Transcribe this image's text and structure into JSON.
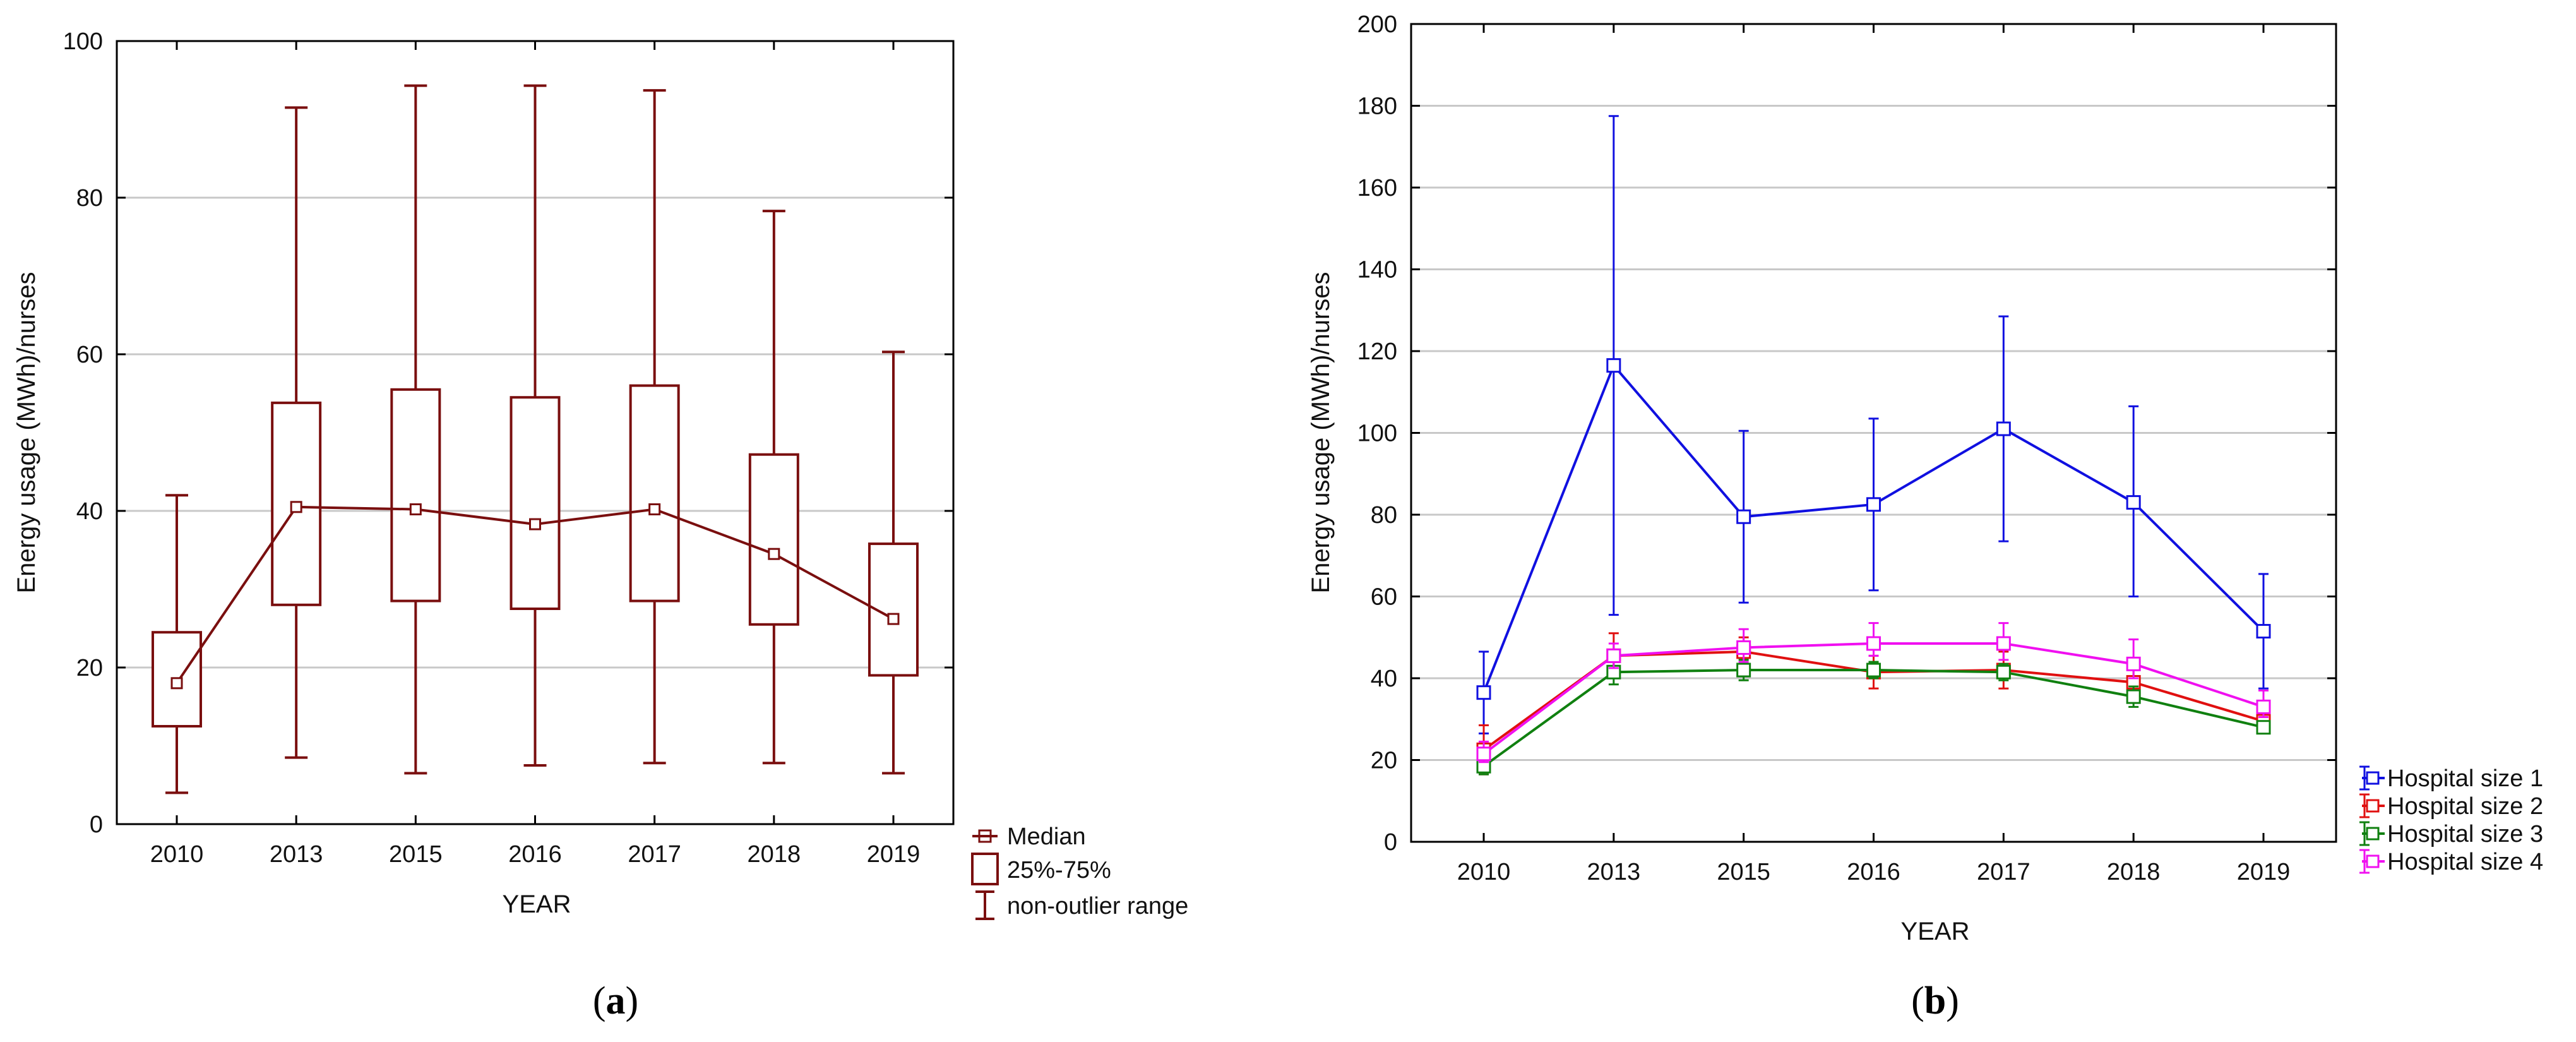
{
  "chart_data": [
    {
      "id": "a",
      "type": "box",
      "caption_letter": "a",
      "xlabel": "YEAR",
      "ylabel": "Energy usage (MWh)/nurses",
      "categories": [
        "2010",
        "2013",
        "2015",
        "2016",
        "2017",
        "2018",
        "2019"
      ],
      "ylim": [
        0,
        100
      ],
      "yticks": [
        0,
        20,
        40,
        60,
        80,
        100
      ],
      "grid": true,
      "color": "#7a0f0f",
      "boxes": [
        {
          "min": 4,
          "q1": 12.5,
          "median": 18,
          "q3": 24.5,
          "max": 42
        },
        {
          "min": 8.5,
          "q1": 28,
          "median": 40.5,
          "q3": 53.8,
          "max": 91.5
        },
        {
          "min": 6.5,
          "q1": 28.5,
          "median": 40.2,
          "q3": 55.5,
          "max": 94.3
        },
        {
          "min": 7.5,
          "q1": 27.5,
          "median": 38.3,
          "q3": 54.5,
          "max": 94.3
        },
        {
          "min": 7.8,
          "q1": 28.5,
          "median": 40.2,
          "q3": 56,
          "max": 93.7
        },
        {
          "min": 7.8,
          "q1": 25.5,
          "median": 34.5,
          "q3": 47.2,
          "max": 78.3
        },
        {
          "min": 6.5,
          "q1": 19,
          "median": 26.2,
          "q3": 35.8,
          "max": 60.3
        }
      ],
      "legend": {
        "median": "Median",
        "box": "25%-75%",
        "whisker": "non-outlier range"
      }
    },
    {
      "id": "b",
      "type": "line",
      "caption_letter": "b",
      "xlabel": "YEAR",
      "ylabel": "Energy usage (MWh)/nurses",
      "categories": [
        "2010",
        "2013",
        "2015",
        "2016",
        "2017",
        "2018",
        "2019"
      ],
      "ylim": [
        0,
        200
      ],
      "yticks": [
        0,
        20,
        40,
        60,
        80,
        100,
        120,
        140,
        160,
        180,
        200
      ],
      "grid": true,
      "series": [
        {
          "name": "Hospital size 1",
          "color": "#1010e0",
          "values": [
            36.5,
            116.5,
            79.5,
            82.5,
            101,
            83,
            51.5
          ],
          "lower": [
            26.5,
            55.5,
            58.5,
            61.5,
            73.5,
            60,
            37.5
          ],
          "upper": [
            46.5,
            177.5,
            100.5,
            103.5,
            128.5,
            106.5,
            65.5
          ]
        },
        {
          "name": "Hospital size 2",
          "color": "#e01010",
          "values": [
            22.5,
            45.5,
            46.5,
            41.5,
            42,
            39,
            29.5
          ],
          "lower": [
            16.5,
            40,
            43,
            37.5,
            37.5,
            36,
            27.5
          ],
          "upper": [
            28.5,
            51,
            50,
            45.5,
            46.5,
            42,
            31.5
          ]
        },
        {
          "name": "Hospital size 3",
          "color": "#108010",
          "values": [
            18.5,
            41.5,
            42,
            42,
            41.5,
            35.5,
            28
          ],
          "lower": [
            16.5,
            38.5,
            39.5,
            40,
            39.5,
            33,
            26.5
          ],
          "upper": [
            20.5,
            44.5,
            44.5,
            44,
            43.5,
            38,
            29.5
          ]
        },
        {
          "name": "Hospital size 4",
          "color": "#f010f0",
          "values": [
            21.5,
            45.5,
            47.5,
            48.5,
            48.5,
            43.5,
            33
          ],
          "lower": [
            19.5,
            42.5,
            44,
            45.5,
            44.5,
            40,
            30.5
          ],
          "upper": [
            24.5,
            48.5,
            52,
            53.5,
            53.5,
            49.5,
            37
          ]
        }
      ]
    }
  ]
}
